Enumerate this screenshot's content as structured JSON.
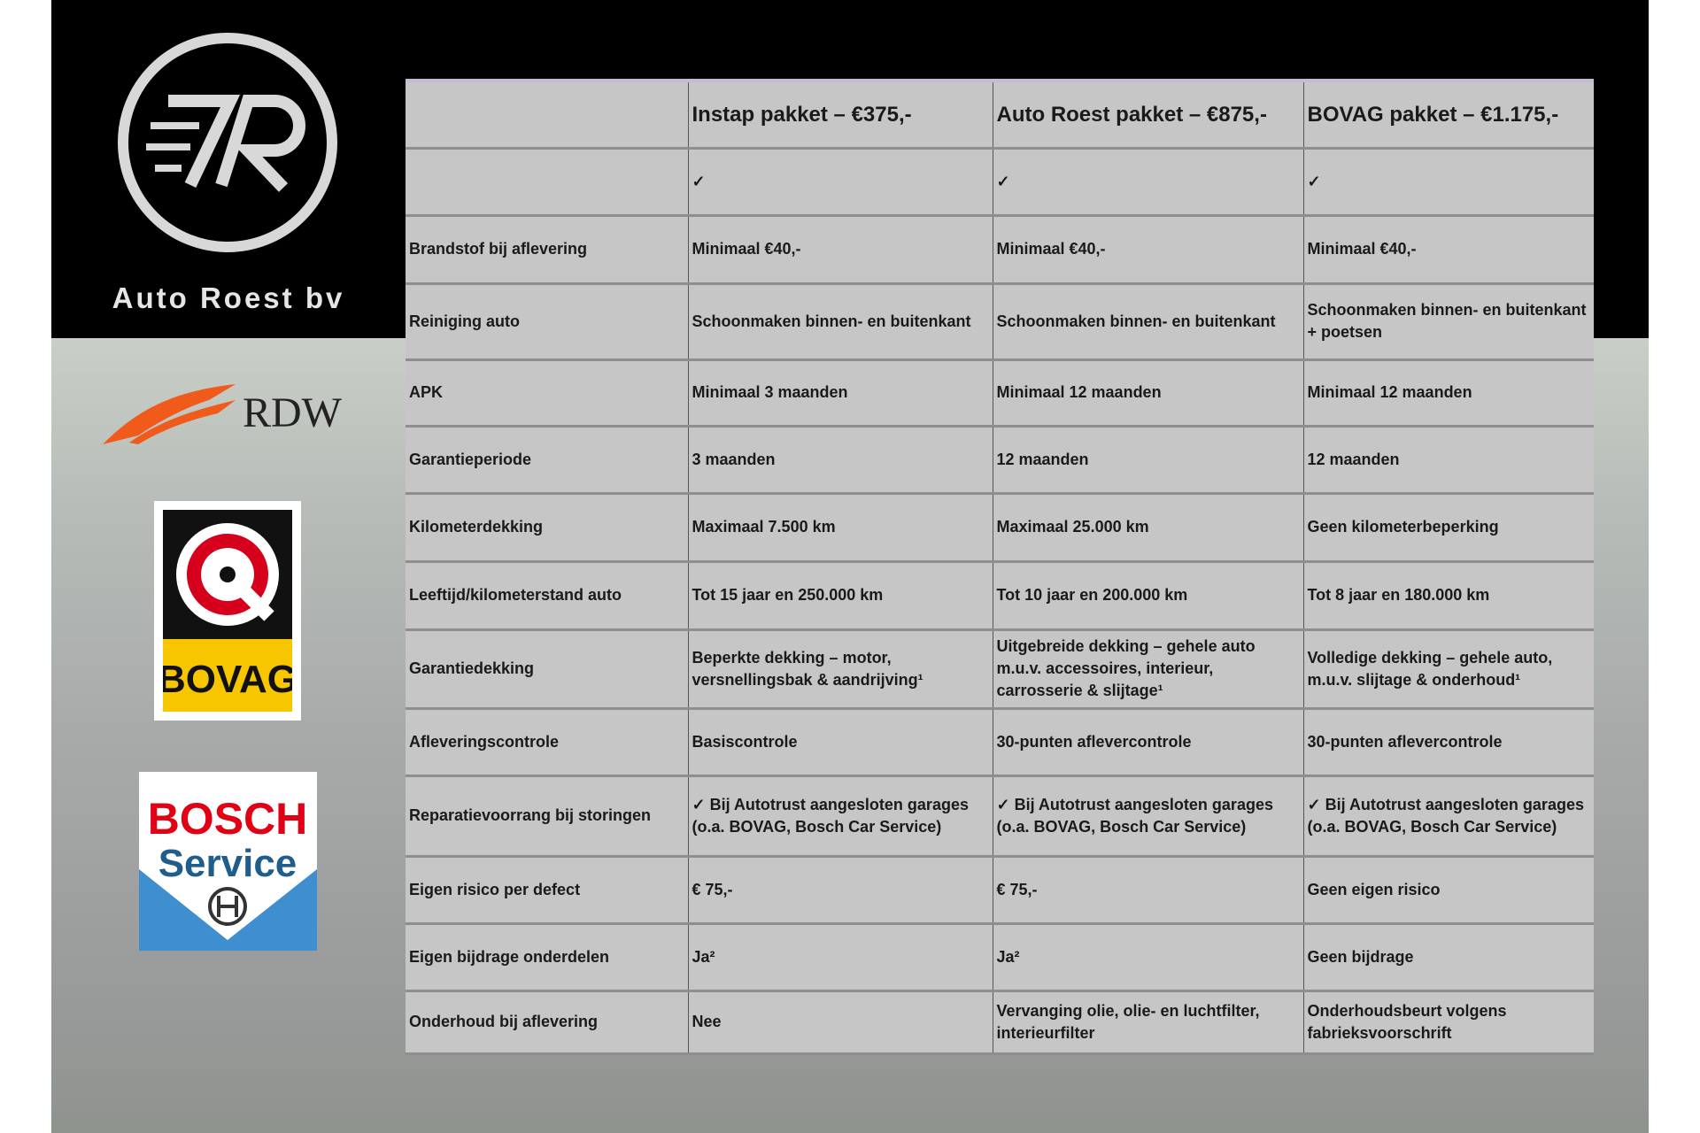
{
  "brand": {
    "name": "Auto Roest bv",
    "logos": [
      "RDW",
      "BOVAG",
      "BOSCH Service"
    ],
    "rdw": "RDW",
    "bovag": "BOVAG",
    "bosch_line1": "BOSCH",
    "bosch_line2": "Service"
  },
  "table": {
    "headers": [
      "",
      "Instap pakket – €375,-",
      "Auto Roest pakket – €875,-",
      "BOVAG pakket – €1.175,-"
    ],
    "rows": [
      [
        "",
        "✓",
        "✓",
        "✓"
      ],
      [
        "Brandstof bij aflevering",
        "Minimaal €40,-",
        "Minimaal €40,-",
        "Minimaal €40,-"
      ],
      [
        "Reiniging auto",
        "Schoonmaken binnen- en buitenkant",
        "Schoonmaken binnen- en buitenkant",
        "Schoonmaken binnen- en buitenkant + poetsen"
      ],
      [
        "APK",
        "Minimaal 3 maanden",
        "Minimaal 12 maanden",
        "Minimaal 12 maanden"
      ],
      [
        "Garantieperiode",
        "3 maanden",
        "12 maanden",
        "12 maanden"
      ],
      [
        "Kilometerdekking",
        "Maximaal 7.500 km",
        "Maximaal 25.000 km",
        "Geen kilometerbeperking"
      ],
      [
        "Leeftijd/kilometerstand auto",
        "Tot 15 jaar en 250.000 km",
        "Tot 10 jaar en 200.000 km",
        "Tot 8 jaar en 180.000 km"
      ],
      [
        "Garantiedekking",
        "Beperkte dekking – motor, versnellingsbak & aandrijving¹",
        "Uitgebreide dekking – gehele auto m.u.v. accessoires, interieur, carrosserie & slijtage¹",
        "Volledige dekking – gehele auto, m.u.v. slijtage & onderhoud¹"
      ],
      [
        "Afleveringscontrole",
        "Basiscontrole",
        "30-punten aflevercontrole",
        "30-punten aflevercontrole"
      ],
      [
        "Reparatievoorrang bij storingen",
        "✓ Bij Autotrust aangesloten garages (o.a. BOVAG, Bosch Car Service)",
        "✓ Bij Autotrust aangesloten garages (o.a. BOVAG, Bosch Car Service)",
        "✓ Bij Autotrust aangesloten garages (o.a. BOVAG, Bosch Car Service)"
      ],
      [
        "Eigen risico per defect",
        "€ 75,-",
        "€ 75,-",
        "Geen eigen risico"
      ],
      [
        "Eigen bijdrage onderdelen",
        "Ja²",
        "Ja²",
        "Geen bijdrage"
      ],
      [
        "Onderhoud bij aflevering",
        "Nee",
        "Vervanging olie, olie- en luchtfilter, interieurfilter",
        "Onderhoudsbeurt volgens fabrieksvoorschrift"
      ]
    ]
  },
  "colors": {
    "band": "#000000",
    "table_bg": "#c6c6c6",
    "rdw_orange": "#f05a1a",
    "bovag_yellow": "#f7c600",
    "bovag_red": "#d6001c",
    "bosch_red": "#e20015",
    "bosch_blue": "#1f5d8c"
  }
}
